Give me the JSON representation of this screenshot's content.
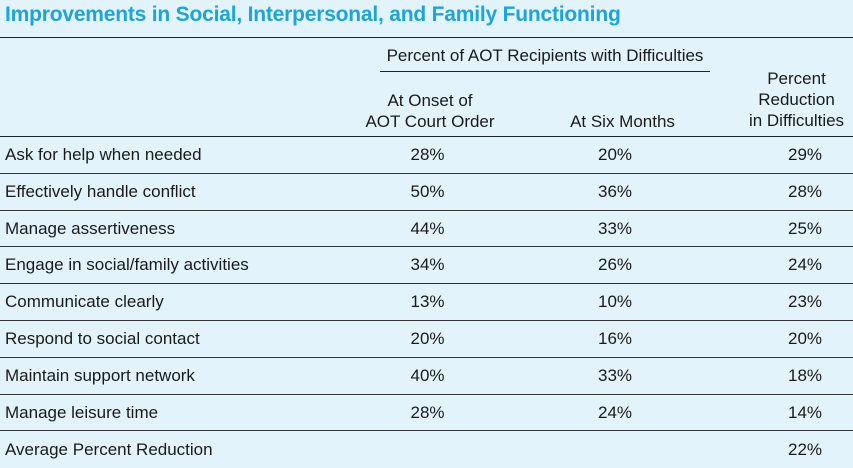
{
  "title": "Improvements in Social, Interpersonal, and Family Functioning",
  "group_header": "Percent of AOT Recipients with Difficulties",
  "columns": {
    "onset_line1": "At Onset of",
    "onset_line2": "AOT Court Order",
    "six_months": "At Six Months",
    "reduction_line1": "Percent",
    "reduction_line2": "Reduction",
    "reduction_line3": "in Difficulties"
  },
  "rows": [
    {
      "label": "Ask for help when needed",
      "onset": "28%",
      "six": "20%",
      "reduction": "29%"
    },
    {
      "label": "Effectively handle conflict",
      "onset": "50%",
      "six": "36%",
      "reduction": "28%"
    },
    {
      "label": "Manage assertiveness",
      "onset": "44%",
      "six": "33%",
      "reduction": "25%"
    },
    {
      "label": "Engage in social/family activities",
      "onset": "34%",
      "six": "26%",
      "reduction": "24%"
    },
    {
      "label": "Communicate clearly",
      "onset": "13%",
      "six": "10%",
      "reduction": "23%"
    },
    {
      "label": "Respond to social contact",
      "onset": "20%",
      "six": "16%",
      "reduction": "20%"
    },
    {
      "label": "Maintain support network",
      "onset": "40%",
      "six": "33%",
      "reduction": "18%"
    },
    {
      "label": "Manage leisure time",
      "onset": "28%",
      "six": "24%",
      "reduction": "14%"
    }
  ],
  "average": {
    "label": "Average Percent Reduction",
    "reduction": "22%"
  }
}
